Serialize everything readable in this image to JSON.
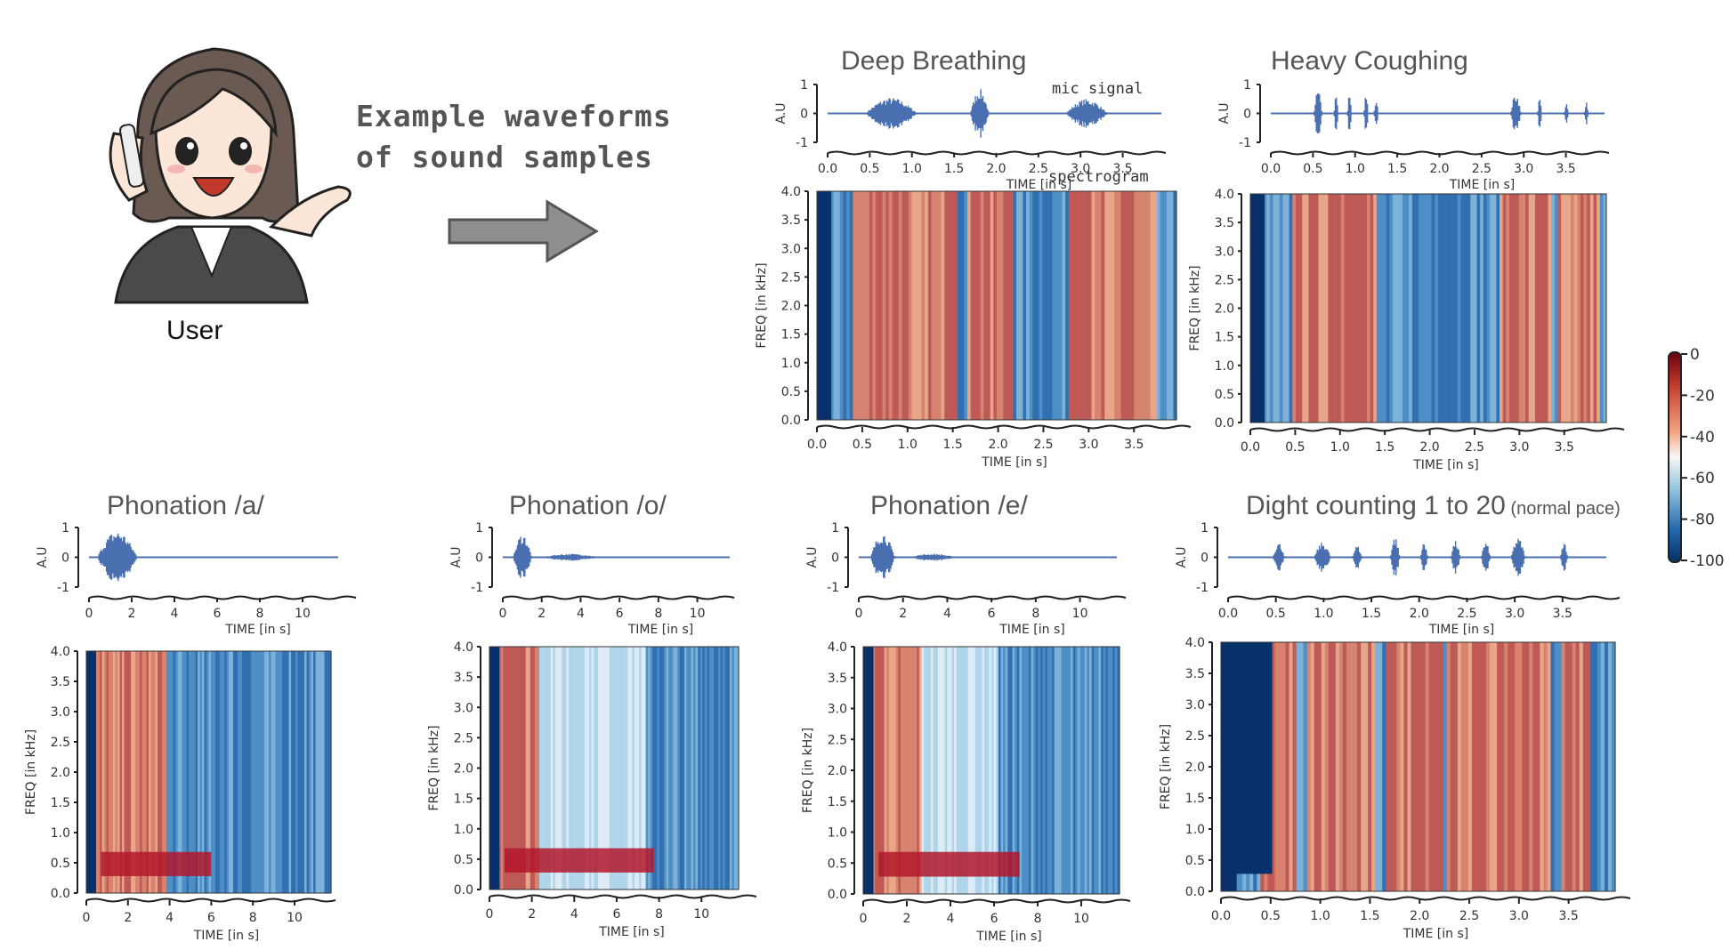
{
  "header": {
    "user_label": "User",
    "caption_line1": "Example waveforms",
    "caption_line2": "of sound samples",
    "mic_signal_label": "mic signal",
    "spectrogram_label": "spectrogram"
  },
  "panels": [
    {
      "id": "deep",
      "title": "Deep Breathing",
      "subtitle": "",
      "wave_xticks": [
        "0.0",
        "0.5",
        "1.0",
        "1.5",
        "2.0",
        "2.5",
        "3.0",
        "3.5"
      ],
      "spec_xticks": [
        "0.0",
        "0.5",
        "1.0",
        "1.5",
        "2.0",
        "2.5",
        "3.0",
        "3.5"
      ],
      "xlabel": "TIME [in s]"
    },
    {
      "id": "cough",
      "title": "Heavy Coughing",
      "subtitle": "",
      "wave_xticks": [
        "0.0",
        "0.5",
        "1.0",
        "1.5",
        "2.0",
        "2.5",
        "3.0",
        "3.5"
      ],
      "spec_xticks": [
        "0.0",
        "0.5",
        "1.0",
        "1.5",
        "2.0",
        "2.5",
        "3.0",
        "3.5"
      ],
      "xlabel": "TIME [in s]"
    },
    {
      "id": "pa",
      "title": "Phonation /a/",
      "subtitle": "",
      "wave_xticks": [
        "0",
        "2",
        "4",
        "6",
        "8",
        "10"
      ],
      "spec_xticks": [
        "0",
        "2",
        "4",
        "6",
        "8",
        "10"
      ],
      "xlabel": "TIME [in s]"
    },
    {
      "id": "po",
      "title": "Phonation /o/",
      "subtitle": "",
      "wave_xticks": [
        "0",
        "2",
        "4",
        "6",
        "8",
        "10"
      ],
      "spec_xticks": [
        "0",
        "2",
        "4",
        "6",
        "8",
        "10"
      ],
      "xlabel": "TIME [in s]"
    },
    {
      "id": "pe",
      "title": "Phonation /e/",
      "subtitle": "",
      "wave_xticks": [
        "0",
        "2",
        "4",
        "6",
        "8",
        "10"
      ],
      "spec_xticks": [
        "0",
        "2",
        "4",
        "6",
        "8",
        "10"
      ],
      "xlabel": "TIME [in s]"
    },
    {
      "id": "count",
      "title": "Dight counting 1 to 20",
      "subtitle": "(normal pace)",
      "wave_xticks": [
        "0.0",
        "0.5",
        "1.0",
        "1.5",
        "2.0",
        "2.5",
        "3.0",
        "3.5"
      ],
      "spec_xticks": [
        "0.0",
        "0.5",
        "1.0",
        "1.5",
        "2.0",
        "2.5",
        "3.0",
        "3.5"
      ],
      "xlabel": "TIME [in s]"
    }
  ],
  "axes": {
    "wave_ylabel": "A.U",
    "wave_yticks": [
      "1",
      "0",
      "-1"
    ],
    "spec_ylabel": "FREQ [in kHz]",
    "spec_yticks": [
      "4.0",
      "3.5",
      "3.0",
      "2.5",
      "2.0",
      "1.5",
      "1.0",
      "0.5",
      "0.0"
    ],
    "count_top_ytick": "4.0"
  },
  "colorbar": {
    "ticks": [
      "0",
      "-20",
      "-40",
      "-60",
      "-80",
      "-100"
    ],
    "colors": {
      "high": "#a50f15",
      "mid": "#f7f7f7",
      "low": "#08306b"
    }
  },
  "colors": {
    "waveform": "#4a6fb0",
    "axis": "#222222"
  }
}
